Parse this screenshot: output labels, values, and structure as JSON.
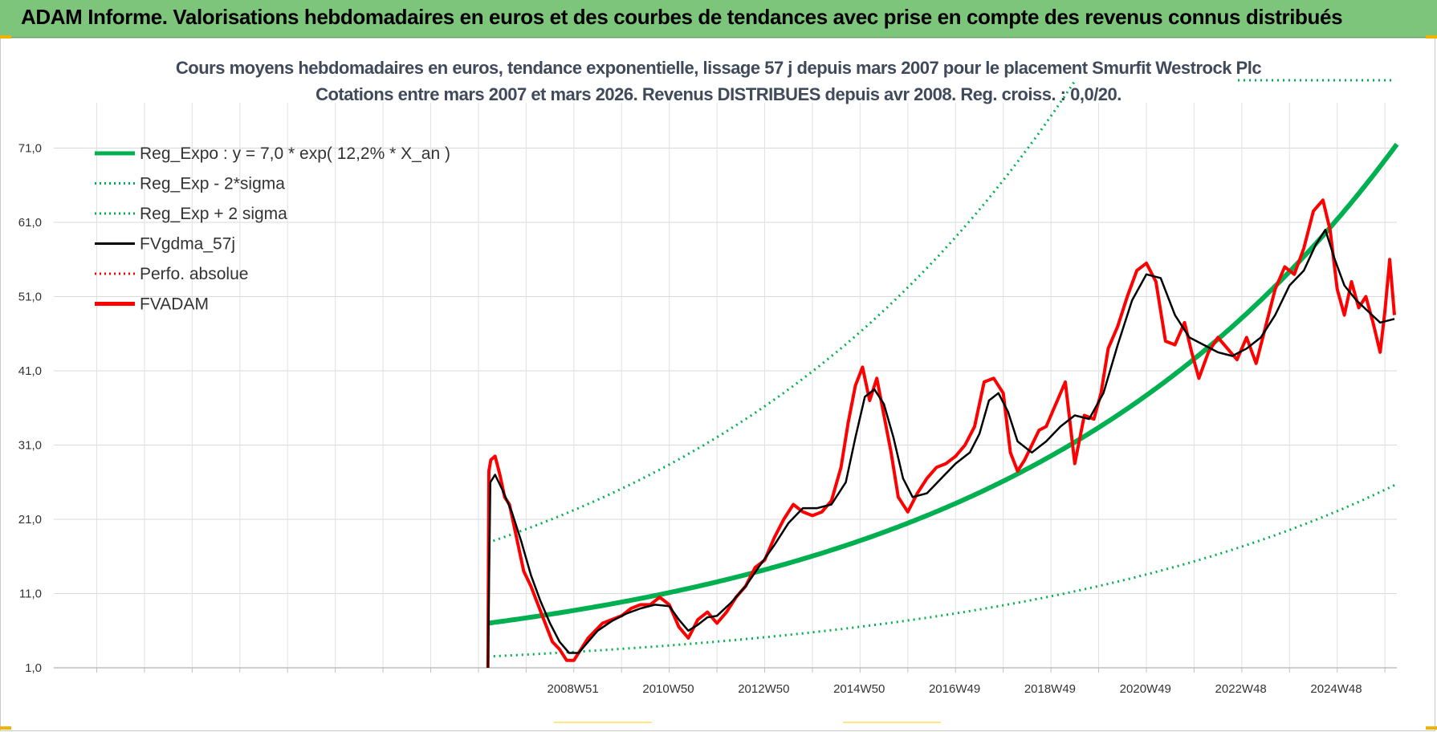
{
  "banner": {
    "title": "ADAM Informe. Valorisations hebdomadaires en euros et des courbes de tendances avec prise en compte des revenus connus distribués"
  },
  "colors": {
    "banner_bg": "#7cc57a",
    "trend_green": "#00b050",
    "smoothed_black": "#000000",
    "price_red": "#ff0000",
    "corner_accent": "#f0b400"
  },
  "chart_data": {
    "type": "line",
    "title": "Cours moyens hebdomadaires en euros, tendance exponentielle, lissage 57 j depuis mars 2007 pour le placement Smurfit Westrock Plc",
    "subtitle": "Cotations entre mars 2007 et mars 2026. Revenus DISTRIBUES depuis avr 2008. Reg. croiss. : 0,0/20.",
    "xlabel": "",
    "ylabel": "",
    "ylim": [
      1,
      80
    ],
    "yticks": [
      "1,0",
      "11,0",
      "21,0",
      "31,0",
      "41,0",
      "51,0",
      "61,0",
      "71,0"
    ],
    "xticks": [
      "2008W51",
      "2010W50",
      "2012W50",
      "2014W50",
      "2016W49",
      "2018W49",
      "2020W49",
      "2022W48",
      "2024W48"
    ],
    "xlim": [
      1998.1,
      2026.25
    ],
    "grid": true,
    "legend_position": "top-left",
    "legend": [
      {
        "label": "Reg_Expo : y = 7,0 * exp( 12,2% *  X_an )",
        "style": "thick-solid",
        "color": "#00b050"
      },
      {
        "label": "Reg_Exp - 2*sigma",
        "style": "dotted",
        "color": "#00b050"
      },
      {
        "label": "Reg_Exp + 2 sigma",
        "style": "dotted",
        "color": "#00b050"
      },
      {
        "label": "FVgdma_57j",
        "style": "solid",
        "color": "#000000"
      },
      {
        "label": "Perfo. absolue",
        "style": "dotted",
        "color": "#ff0000"
      },
      {
        "label": "FVADAM",
        "style": "thick-solid",
        "color": "#ff0000"
      }
    ],
    "regression": {
      "a": 7.0,
      "growth_rate": 0.122,
      "x_start": 2007.2,
      "x_end": 2026.25,
      "sigma_factor_low": 0.36,
      "sigma_factor_high": 2.55
    },
    "series": [
      {
        "name": "FVADAM",
        "x": [
          2007.2,
          2007.22,
          2007.26,
          2007.35,
          2007.45,
          2007.55,
          2007.65,
          2007.8,
          2007.95,
          2008.1,
          2008.25,
          2008.4,
          2008.55,
          2008.7,
          2008.85,
          2009.0,
          2009.15,
          2009.3,
          2009.45,
          2009.6,
          2009.8,
          2010.0,
          2010.2,
          2010.4,
          2010.6,
          2010.8,
          2011.0,
          2011.2,
          2011.4,
          2011.6,
          2011.8,
          2012.0,
          2012.2,
          2012.4,
          2012.6,
          2012.8,
          2013.0,
          2013.2,
          2013.4,
          2013.6,
          2013.8,
          2014.0,
          2014.2,
          2014.4,
          2014.6,
          2014.75,
          2014.9,
          2015.05,
          2015.2,
          2015.35,
          2015.5,
          2015.65,
          2015.8,
          2016.0,
          2016.2,
          2016.4,
          2016.6,
          2016.8,
          2017.0,
          2017.2,
          2017.4,
          2017.6,
          2017.8,
          2018.0,
          2018.15,
          2018.3,
          2018.45,
          2018.6,
          2018.75,
          2018.9,
          2019.1,
          2019.3,
          2019.5,
          2019.7,
          2019.9,
          2020.05,
          2020.2,
          2020.4,
          2020.6,
          2020.8,
          2021.0,
          2021.2,
          2021.4,
          2021.6,
          2021.8,
          2021.95,
          2022.1,
          2022.3,
          2022.5,
          2022.7,
          2022.9,
          2023.1,
          2023.3,
          2023.5,
          2023.7,
          2023.9,
          2024.1,
          2024.3,
          2024.5,
          2024.7,
          2024.85,
          2025.0,
          2025.15,
          2025.3,
          2025.45,
          2025.6,
          2025.75,
          2025.9,
          2026.0,
          2026.1,
          2026.2
        ],
        "y": [
          1.0,
          27.5,
          29.0,
          29.5,
          27.0,
          24.0,
          23.0,
          18.5,
          14.0,
          12.0,
          9.5,
          7.0,
          4.5,
          3.5,
          2.0,
          2.0,
          3.5,
          5.0,
          6.0,
          7.0,
          7.5,
          8.0,
          9.0,
          9.5,
          9.5,
          10.5,
          9.5,
          6.5,
          5.0,
          7.5,
          8.5,
          7.0,
          8.5,
          10.5,
          12.0,
          14.5,
          15.5,
          18.5,
          21.0,
          23.0,
          22.0,
          21.5,
          22.0,
          23.5,
          28.0,
          34.0,
          39.0,
          41.5,
          37.0,
          40.0,
          35.0,
          30.0,
          24.0,
          22.0,
          24.5,
          26.5,
          28.0,
          28.5,
          29.5,
          31.0,
          33.5,
          39.5,
          40.0,
          38.0,
          30.0,
          27.5,
          29.0,
          31.0,
          33.0,
          33.5,
          36.5,
          39.5,
          28.5,
          35.0,
          34.5,
          38.0,
          44.0,
          47.0,
          51.0,
          54.5,
          55.5,
          53.0,
          45.0,
          44.5,
          47.5,
          43.5,
          40.0,
          43.5,
          45.5,
          44.0,
          42.5,
          45.5,
          42.0,
          47.0,
          52.0,
          55.0,
          54.0,
          57.5,
          62.5,
          64.0,
          60.0,
          52.0,
          48.5,
          53.0,
          49.5,
          51.0,
          47.5,
          43.5,
          49.0,
          56.0,
          48.5
        ]
      },
      {
        "name": "FVgdma_57j",
        "x": [
          2007.2,
          2007.25,
          2007.35,
          2007.5,
          2007.7,
          2007.9,
          2008.1,
          2008.3,
          2008.5,
          2008.7,
          2008.9,
          2009.1,
          2009.3,
          2009.5,
          2009.8,
          2010.1,
          2010.4,
          2010.7,
          2011.0,
          2011.2,
          2011.4,
          2011.6,
          2011.8,
          2012.0,
          2012.3,
          2012.6,
          2012.9,
          2013.2,
          2013.5,
          2013.8,
          2014.1,
          2014.4,
          2014.7,
          2014.9,
          2015.1,
          2015.3,
          2015.5,
          2015.7,
          2015.9,
          2016.1,
          2016.4,
          2016.7,
          2017.0,
          2017.3,
          2017.5,
          2017.7,
          2017.9,
          2018.1,
          2018.3,
          2018.6,
          2018.9,
          2019.2,
          2019.5,
          2019.8,
          2020.1,
          2020.4,
          2020.7,
          2021.0,
          2021.3,
          2021.6,
          2021.9,
          2022.2,
          2022.5,
          2022.8,
          2023.1,
          2023.4,
          2023.7,
          2024.0,
          2024.3,
          2024.55,
          2024.75,
          2024.95,
          2025.15,
          2025.4,
          2025.65,
          2025.9,
          2026.2
        ],
        "y": [
          1.0,
          26.0,
          27.0,
          25.0,
          22.0,
          18.0,
          13.5,
          10.0,
          7.0,
          4.5,
          3.0,
          3.0,
          4.5,
          6.0,
          7.3,
          8.3,
          9.0,
          9.5,
          9.3,
          7.5,
          6.0,
          6.8,
          7.8,
          8.0,
          9.8,
          12.0,
          14.8,
          17.5,
          20.5,
          22.5,
          22.5,
          23.0,
          26.0,
          32.0,
          37.5,
          38.5,
          36.5,
          32.0,
          26.5,
          24.0,
          24.5,
          26.5,
          28.5,
          30.0,
          32.5,
          37.0,
          38.0,
          35.5,
          31.5,
          30.0,
          31.5,
          33.5,
          35.0,
          34.5,
          38.0,
          44.5,
          50.5,
          54.0,
          53.5,
          48.5,
          45.5,
          44.5,
          43.5,
          43.0,
          44.0,
          45.5,
          48.5,
          52.5,
          54.5,
          58.0,
          60.0,
          56.0,
          52.5,
          50.5,
          49.0,
          47.5,
          48.0
        ]
      }
    ]
  }
}
